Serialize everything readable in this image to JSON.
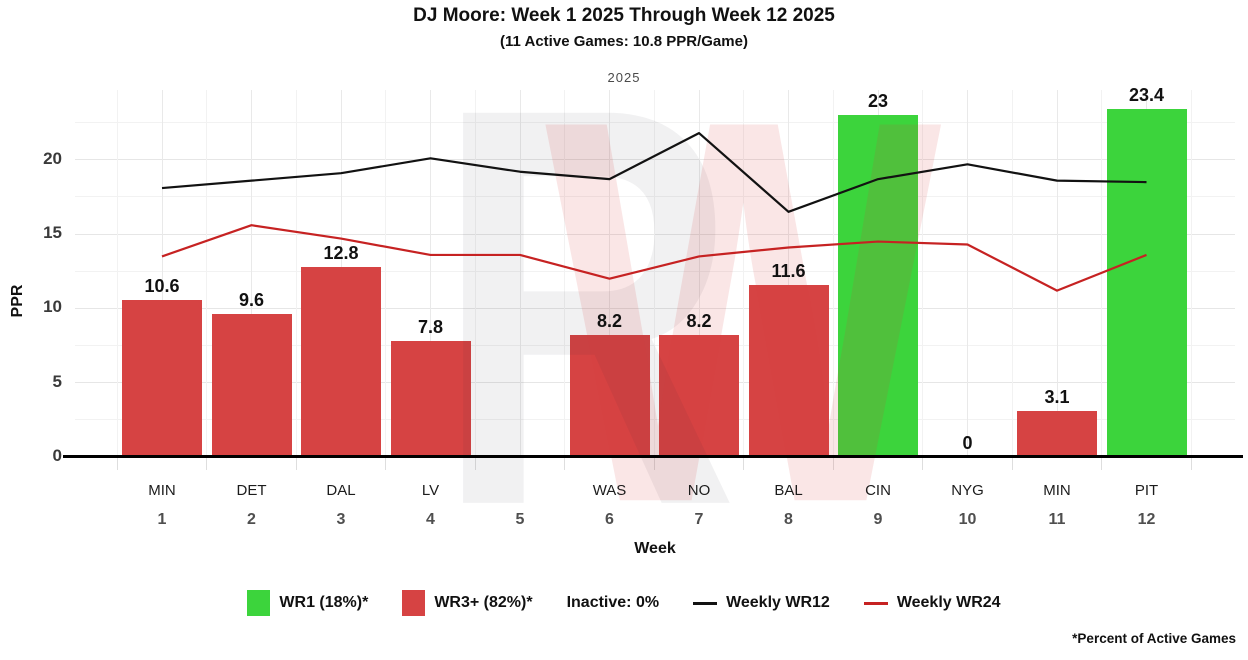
{
  "title": "DJ Moore: Week 1 2025 Through Week 12 2025",
  "subtitle": "(11 Active Games: 10.8 PPR/Game)",
  "facet_label": "2025",
  "watermark": {
    "letters": [
      "R",
      "W"
    ]
  },
  "axes": {
    "y_label": "PPR",
    "x_label": "Week",
    "y_ticks": [
      0,
      5,
      10,
      15,
      20
    ]
  },
  "chart_data": {
    "type": "bar",
    "title": "DJ Moore: Week 1 2025 Through Week 12 2025",
    "subtitle": "(11 Active Games: 10.8 PPR/Game)",
    "facet": "2025",
    "xlabel": "Week",
    "ylabel": "PPR",
    "ylim": [
      0,
      24.7
    ],
    "grid": true,
    "legend_position": "bottom",
    "categories_week": [
      "1",
      "2",
      "3",
      "4",
      "5",
      "6",
      "7",
      "8",
      "9",
      "10",
      "11",
      "12"
    ],
    "categories_team": [
      "MIN",
      "DET",
      "DAL",
      "LV",
      "",
      "WAS",
      "NO",
      "BAL",
      "CIN",
      "NYG",
      "MIN",
      "PIT"
    ],
    "bars": {
      "values": [
        10.6,
        9.6,
        12.8,
        7.8,
        null,
        8.2,
        8.2,
        11.6,
        23,
        0,
        3.1,
        23.4
      ],
      "labels": [
        "10.6",
        "9.6",
        "12.8",
        "7.8",
        "",
        "8.2",
        "8.2",
        "11.6",
        "23",
        "0",
        "3.1",
        "23.4"
      ],
      "tiers": [
        "WR3+",
        "WR3+",
        "WR3+",
        "WR3+",
        null,
        "WR3+",
        "WR3+",
        "WR3+",
        "WR1",
        "WR3+",
        "WR3+",
        "WR1"
      ],
      "colors": {
        "WR1": "#3cd43c",
        "WR3+": "#d64343"
      }
    },
    "series": [
      {
        "name": "Weekly WR12",
        "color": "#121212",
        "values": [
          18.1,
          18.6,
          19.1,
          20.1,
          19.2,
          18.7,
          21.8,
          16.5,
          18.7,
          19.7,
          18.6,
          18.5
        ]
      },
      {
        "name": "Weekly WR24",
        "color": "#c62222",
        "values": [
          13.5,
          15.6,
          14.7,
          13.6,
          13.6,
          12.0,
          13.5,
          14.1,
          14.5,
          14.3,
          11.2,
          13.6
        ]
      }
    ]
  },
  "legend": {
    "wr1": "WR1 (18%)*",
    "wr3": "WR3+ (82%)*",
    "inactive": "Inactive: 0%",
    "wr12": "Weekly WR12",
    "wr24": "Weekly WR24"
  },
  "footnote": "*Percent of Active Games"
}
